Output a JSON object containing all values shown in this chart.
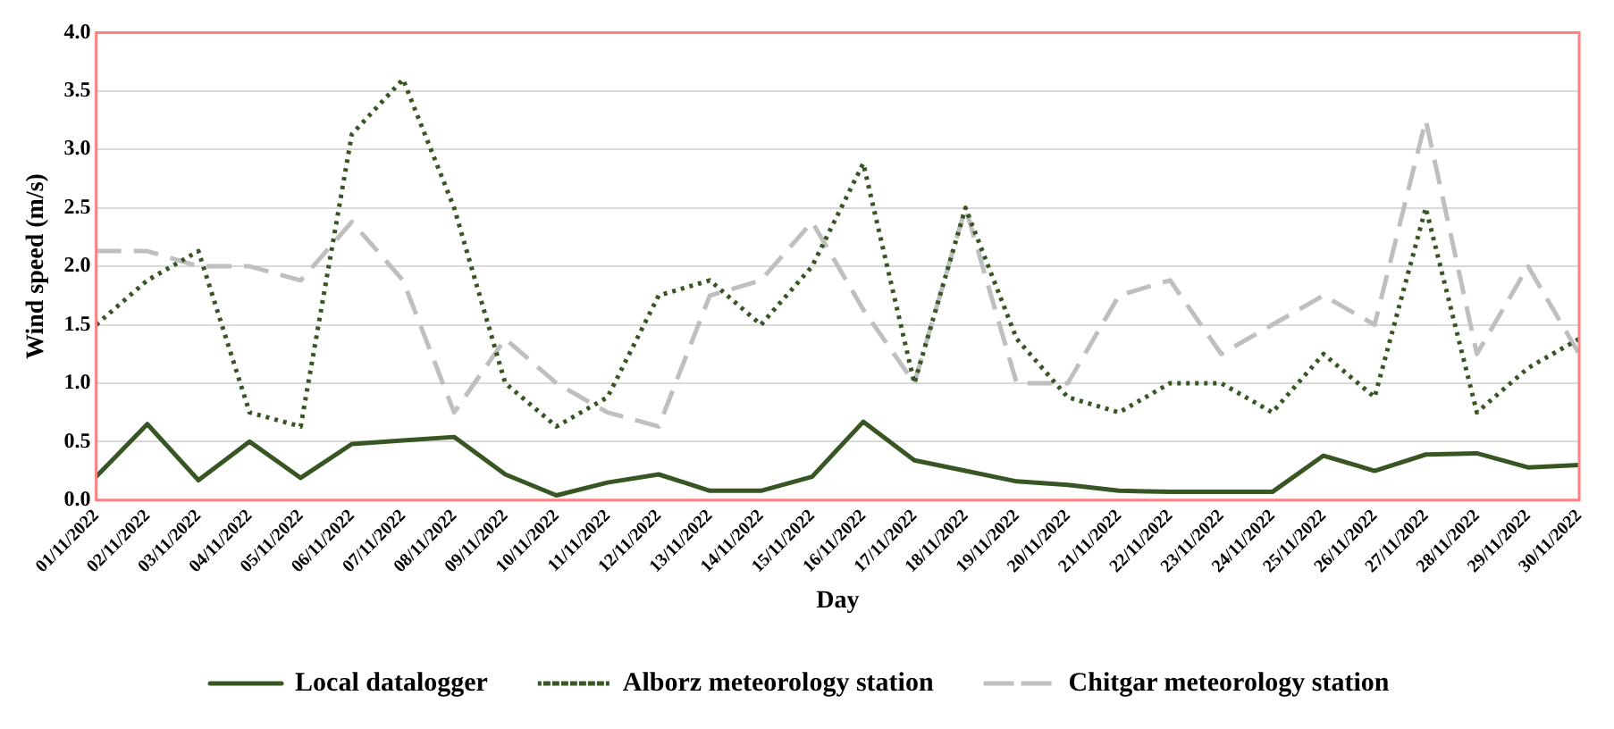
{
  "chart_data": {
    "type": "line",
    "xlabel": "Day",
    "ylabel": "Wind speed (m/s)",
    "categories": [
      "01/11/2022",
      "02/11/2022",
      "03/11/2022",
      "04/11/2022",
      "05/11/2022",
      "06/11/2022",
      "07/11/2022",
      "08/11/2022",
      "09/11/2022",
      "10/11/2022",
      "11/11/2022",
      "12/11/2022",
      "13/11/2022",
      "14/11/2022",
      "15/11/2022",
      "16/11/2022",
      "17/11/2022",
      "18/11/2022",
      "19/11/2022",
      "20/11/2022",
      "21/11/2022",
      "22/11/2022",
      "23/11/2022",
      "24/11/2022",
      "25/11/2022",
      "26/11/2022",
      "27/11/2022",
      "28/11/2022",
      "29/11/2022",
      "30/11/2022"
    ],
    "series": [
      {
        "name": "Local datalogger",
        "color": "#375623",
        "line_style": "solid",
        "values": [
          0.2,
          0.65,
          0.17,
          0.5,
          0.19,
          0.48,
          0.51,
          0.54,
          0.22,
          0.04,
          0.15,
          0.22,
          0.08,
          0.08,
          0.2,
          0.67,
          0.34,
          0.25,
          0.16,
          0.13,
          0.08,
          0.07,
          0.07,
          0.07,
          0.38,
          0.25,
          0.39,
          0.4,
          0.28,
          0.3
        ]
      },
      {
        "name": "Alborz meteorology station",
        "color": "#375623",
        "line_style": "dotted",
        "values": [
          1.5,
          1.88,
          2.13,
          0.75,
          0.63,
          3.13,
          3.6,
          2.5,
          1.0,
          0.63,
          0.88,
          1.75,
          1.88,
          1.5,
          2.0,
          2.88,
          1.0,
          2.5,
          1.38,
          0.88,
          0.75,
          1.0,
          1.0,
          0.75,
          1.25,
          0.88,
          2.5,
          0.75,
          1.13,
          1.38
        ]
      },
      {
        "name": "Chitgar meteorology station",
        "color": "#bfbfbf",
        "line_style": "dashed",
        "values": [
          2.13,
          2.13,
          2.0,
          2.0,
          1.88,
          2.38,
          1.88,
          0.75,
          1.38,
          1.0,
          0.75,
          0.63,
          1.75,
          1.88,
          2.38,
          1.63,
          1.0,
          2.5,
          1.0,
          1.0,
          1.75,
          1.88,
          1.25,
          1.5,
          1.75,
          1.5,
          3.25,
          1.25,
          2.0,
          1.25
        ]
      }
    ],
    "ylim": [
      0,
      4
    ],
    "yticks": [
      {
        "value": 0,
        "label": "0.0"
      },
      {
        "value": 0.5,
        "label": "0.5"
      },
      {
        "value": 1,
        "label": "1.0"
      },
      {
        "value": 1.5,
        "label": "1.5"
      },
      {
        "value": 2,
        "label": "2.0"
      },
      {
        "value": 2.5,
        "label": "2.5"
      },
      {
        "value": 3,
        "label": "3.0"
      },
      {
        "value": 3.5,
        "label": "3.5"
      },
      {
        "value": 4,
        "label": "4.0"
      }
    ],
    "grid": "y",
    "legend": "bottom",
    "marker": "none"
  }
}
